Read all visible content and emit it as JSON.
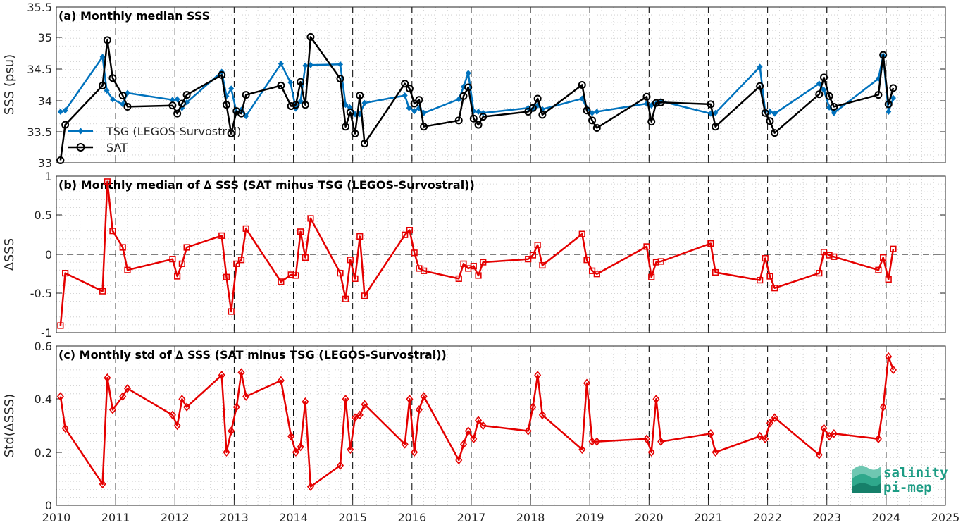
{
  "colors": {
    "tsg": "#0072BD",
    "sat": "#000000",
    "red": "#E50000",
    "logo": "#16A085"
  },
  "logo": {
    "line1": "salinity",
    "line2": "pi-mep"
  },
  "chart_data": [
    {
      "type": "line",
      "title": "(a) Monthly median SSS",
      "ylabel": "SSS (psu)",
      "xlim": [
        2010,
        2025
      ],
      "ylim": [
        33,
        35.5
      ],
      "yticks": [
        "33",
        "33.5",
        "34",
        "34.5",
        "35",
        "35.5"
      ],
      "grid": true,
      "legend_position": "left",
      "series": [
        {
          "name": "TSG (LEGOS-Survostral)",
          "marker": "filled-diamond",
          "x": [
            2010.07,
            2010.15,
            2010.78,
            2010.85,
            2010.95,
            2011.12,
            2011.2,
            2011.96,
            2012.04,
            2012.12,
            2012.2,
            2012.79,
            2012.87,
            2012.95,
            2013.04,
            2013.12,
            2013.2,
            2013.79,
            2013.95,
            2014.04,
            2014.12,
            2014.2,
            2014.29,
            2014.79,
            2014.88,
            2014.95,
            2015.04,
            2015.12,
            2015.2,
            2015.88,
            2015.95,
            2016.04,
            2016.12,
            2016.2,
            2016.79,
            2016.87,
            2016.95,
            2017.04,
            2017.12,
            2017.2,
            2017.96,
            2018.04,
            2018.12,
            2018.2,
            2018.87,
            2018.95,
            2019.04,
            2019.12,
            2019.96,
            2020.04,
            2020.12,
            2020.2,
            2021.04,
            2021.12,
            2021.87,
            2021.96,
            2022.04,
            2022.12,
            2022.87,
            2022.95,
            2023.04,
            2023.12,
            2023.87,
            2023.95,
            2024.04,
            2024.12
          ],
          "y": [
            33.82,
            33.84,
            34.7,
            34.16,
            34.02,
            33.94,
            34.12,
            34.01,
            34.02,
            33.88,
            33.97,
            34.46,
            34.07,
            34.19,
            33.81,
            33.85,
            33.75,
            34.59,
            34.29,
            33.87,
            33.99,
            34.56,
            34.57,
            34.58,
            33.93,
            33.89,
            33.78,
            33.78,
            33.96,
            34.08,
            33.88,
            33.83,
            33.88,
            33.8,
            34.02,
            34.22,
            34.44,
            33.83,
            33.82,
            33.8,
            33.88,
            33.86,
            33.92,
            33.86,
            34.03,
            33.88,
            33.8,
            33.82,
            33.95,
            33.92,
            33.95,
            33.99,
            33.79,
            33.8,
            34.54,
            33.83,
            33.82,
            33.79,
            34.27,
            34.17,
            33.89,
            33.8,
            34.35,
            34.72,
            33.82,
            34.04
          ]
        },
        {
          "name": "SAT",
          "marker": "open-circle",
          "x": [
            2010.07,
            2010.15,
            2010.78,
            2010.86,
            2010.95,
            2011.12,
            2011.2,
            2011.96,
            2012.04,
            2012.12,
            2012.2,
            2012.79,
            2012.87,
            2012.95,
            2013.04,
            2013.12,
            2013.2,
            2013.79,
            2013.96,
            2014.04,
            2014.12,
            2014.2,
            2014.29,
            2014.79,
            2014.88,
            2014.96,
            2015.04,
            2015.12,
            2015.2,
            2015.88,
            2015.96,
            2016.04,
            2016.12,
            2016.2,
            2016.79,
            2016.87,
            2016.95,
            2017.04,
            2017.12,
            2017.2,
            2017.96,
            2018.04,
            2018.12,
            2018.2,
            2018.87,
            2018.95,
            2019.04,
            2019.12,
            2019.96,
            2020.04,
            2020.12,
            2020.2,
            2021.04,
            2021.12,
            2021.87,
            2021.96,
            2022.04,
            2022.12,
            2022.87,
            2022.95,
            2023.04,
            2023.12,
            2023.87,
            2023.95,
            2024.04,
            2024.12
          ],
          "y": [
            33.04,
            33.61,
            34.24,
            34.97,
            34.36,
            34.08,
            33.9,
            33.92,
            33.79,
            33.95,
            34.09,
            34.41,
            33.93,
            33.47,
            33.83,
            33.79,
            34.09,
            34.24,
            33.91,
            33.93,
            34.3,
            33.93,
            35.02,
            34.35,
            33.58,
            33.81,
            33.47,
            34.08,
            33.31,
            34.27,
            34.19,
            33.95,
            34.01,
            33.58,
            33.68,
            34.07,
            34.21,
            33.71,
            33.61,
            33.74,
            33.82,
            33.88,
            34.03,
            33.77,
            34.25,
            33.84,
            33.68,
            33.56,
            34.06,
            33.66,
            33.96,
            33.97,
            33.94,
            33.58,
            34.23,
            33.8,
            33.67,
            33.48,
            34.1,
            34.37,
            34.07,
            33.9,
            34.09,
            34.73,
            33.94,
            34.2
          ]
        }
      ]
    },
    {
      "type": "line",
      "title": "(b) Monthly median of ∆ SSS (SAT minus TSG (LEGOS-Survostral))",
      "ylabel": "∆SSS",
      "xlim": [
        2010,
        2025
      ],
      "ylim": [
        -1,
        1
      ],
      "yticks": [
        "-1",
        "-0.5",
        "0",
        "0.5",
        "1"
      ],
      "grid": true,
      "zero_line": true,
      "series": [
        {
          "name": "",
          "marker": "open-square",
          "x": [
            2010.07,
            2010.15,
            2010.78,
            2010.86,
            2010.95,
            2011.12,
            2011.2,
            2011.96,
            2012.04,
            2012.12,
            2012.2,
            2012.79,
            2012.87,
            2012.95,
            2013.04,
            2013.12,
            2013.2,
            2013.79,
            2013.96,
            2014.04,
            2014.12,
            2014.2,
            2014.29,
            2014.79,
            2014.88,
            2014.96,
            2015.04,
            2015.12,
            2015.2,
            2015.88,
            2015.96,
            2016.04,
            2016.12,
            2016.2,
            2016.79,
            2016.87,
            2016.95,
            2017.04,
            2017.12,
            2017.2,
            2017.96,
            2018.04,
            2018.12,
            2018.2,
            2018.87,
            2018.95,
            2019.04,
            2019.12,
            2019.96,
            2020.04,
            2020.12,
            2020.2,
            2021.04,
            2021.12,
            2021.87,
            2021.96,
            2022.04,
            2022.12,
            2022.87,
            2022.95,
            2023.04,
            2023.12,
            2023.87,
            2023.95,
            2024.04,
            2024.12
          ],
          "y": [
            -0.91,
            -0.24,
            -0.47,
            0.93,
            0.3,
            0.09,
            -0.2,
            -0.06,
            -0.28,
            -0.12,
            0.09,
            0.24,
            -0.29,
            -0.73,
            -0.12,
            -0.07,
            0.33,
            -0.35,
            -0.26,
            -0.27,
            0.29,
            -0.04,
            0.46,
            -0.24,
            -0.57,
            -0.07,
            -0.31,
            0.23,
            -0.53,
            0.25,
            0.31,
            0.02,
            -0.18,
            -0.21,
            -0.31,
            -0.12,
            -0.18,
            -0.15,
            -0.27,
            -0.1,
            -0.06,
            -0.01,
            0.12,
            -0.14,
            0.26,
            -0.07,
            -0.21,
            -0.25,
            0.1,
            -0.29,
            -0.1,
            -0.09,
            0.14,
            -0.23,
            -0.33,
            -0.05,
            -0.28,
            -0.43,
            -0.24,
            0.03,
            -0.01,
            -0.03,
            -0.2,
            -0.04,
            -0.32,
            0.07
          ]
        }
      ]
    },
    {
      "type": "line",
      "title": "(c) Monthly std of ∆ SSS (SAT minus TSG (LEGOS-Survostral))",
      "ylabel": "Std(∆SSS)",
      "xlabel": "",
      "xlim": [
        2010,
        2025
      ],
      "ylim": [
        0,
        0.6
      ],
      "yticks": [
        "0",
        "0.2",
        "0.4",
        "0.6"
      ],
      "xticks": [
        "2010",
        "2011",
        "2012",
        "2013",
        "2014",
        "2015",
        "2016",
        "2017",
        "2018",
        "2019",
        "2020",
        "2021",
        "2022",
        "2023",
        "2024",
        "2025"
      ],
      "grid": true,
      "series": [
        {
          "name": "",
          "marker": "open-diamond",
          "x": [
            2010.07,
            2010.15,
            2010.78,
            2010.86,
            2010.95,
            2011.12,
            2011.2,
            2011.96,
            2012.04,
            2012.12,
            2012.2,
            2012.79,
            2012.87,
            2012.95,
            2013.04,
            2013.12,
            2013.2,
            2013.79,
            2013.96,
            2014.04,
            2014.12,
            2014.2,
            2014.29,
            2014.79,
            2014.88,
            2014.96,
            2015.04,
            2015.12,
            2015.2,
            2015.88,
            2015.96,
            2016.04,
            2016.12,
            2016.2,
            2016.79,
            2016.87,
            2016.95,
            2017.04,
            2017.12,
            2017.2,
            2017.96,
            2018.04,
            2018.12,
            2018.2,
            2018.87,
            2018.95,
            2019.04,
            2019.12,
            2019.96,
            2020.04,
            2020.12,
            2020.2,
            2021.04,
            2021.12,
            2021.87,
            2021.96,
            2022.04,
            2022.12,
            2022.87,
            2022.95,
            2023.04,
            2023.12,
            2023.87,
            2023.95,
            2024.04,
            2024.12
          ],
          "y": [
            0.41,
            0.29,
            0.08,
            0.48,
            0.36,
            0.41,
            0.44,
            0.34,
            0.3,
            0.4,
            0.37,
            0.49,
            0.2,
            0.28,
            0.37,
            0.5,
            0.41,
            0.47,
            0.26,
            0.2,
            0.22,
            0.39,
            0.07,
            0.15,
            0.4,
            0.21,
            0.33,
            0.34,
            0.38,
            0.23,
            0.4,
            0.2,
            0.36,
            0.41,
            0.17,
            0.23,
            0.28,
            0.25,
            0.32,
            0.3,
            0.28,
            0.37,
            0.49,
            0.34,
            0.21,
            0.46,
            0.24,
            0.24,
            0.25,
            0.2,
            0.4,
            0.24,
            0.27,
            0.2,
            0.26,
            0.25,
            0.31,
            0.33,
            0.19,
            0.29,
            0.26,
            0.27,
            0.25,
            0.37,
            0.56,
            0.51
          ]
        }
      ]
    }
  ]
}
